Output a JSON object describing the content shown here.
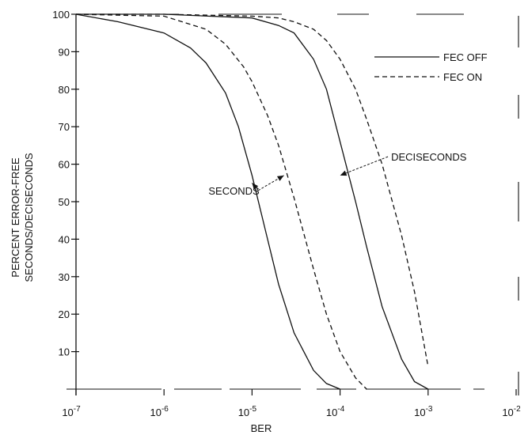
{
  "chart_data": {
    "type": "line",
    "title": "",
    "xlabel": "BER",
    "ylabel_lines": [
      "PERCENT ERROR-FREE",
      "SECONDS/DECISECONDS"
    ],
    "x_scale": "log",
    "xlim": [
      1e-07,
      0.01
    ],
    "ylim": [
      0,
      100
    ],
    "x_ticks": [
      {
        "value": 1e-07,
        "base": "10",
        "exp": "-7"
      },
      {
        "value": 1e-06,
        "base": "10",
        "exp": "-6"
      },
      {
        "value": 1e-05,
        "base": "10",
        "exp": "-5"
      },
      {
        "value": 0.0001,
        "base": "10",
        "exp": "-4"
      },
      {
        "value": 0.001,
        "base": "10",
        "exp": "-3"
      },
      {
        "value": 0.01,
        "base": "10",
        "exp": "-2"
      }
    ],
    "y_ticks": [
      {
        "value": 10,
        "label": "10"
      },
      {
        "value": 20,
        "label": "20"
      },
      {
        "value": 30,
        "label": "30"
      },
      {
        "value": 40,
        "label": "40"
      },
      {
        "value": 50,
        "label": "50"
      },
      {
        "value": 60,
        "label": "60"
      },
      {
        "value": 70,
        "label": "70"
      },
      {
        "value": 80,
        "label": "80"
      },
      {
        "value": 90,
        "label": "90"
      },
      {
        "value": 100,
        "label": "100"
      }
    ],
    "legend": {
      "placement": "top-right",
      "entries": [
        {
          "label": "FEC OFF",
          "style": "solid"
        },
        {
          "label": "FEC ON",
          "style": "dashed"
        }
      ]
    },
    "series": [
      {
        "key": "sec_off",
        "style": "solid",
        "group": "SECONDS",
        "x": [
          1e-07,
          3e-07,
          1e-06,
          2e-06,
          3e-06,
          5e-06,
          7e-06,
          1e-05,
          1.5e-05,
          2e-05,
          3e-05,
          5e-05,
          7e-05,
          0.0001
        ],
        "y": [
          100,
          98,
          95,
          91,
          87,
          79,
          70,
          57,
          40,
          28,
          15,
          5,
          1.5,
          0
        ]
      },
      {
        "key": "sec_on",
        "style": "dashed",
        "group": "SECONDS",
        "x": [
          1e-07,
          1e-06,
          3e-06,
          5e-06,
          8e-06,
          1e-05,
          1.5e-05,
          2e-05,
          3e-05,
          5e-05,
          7e-05,
          0.0001,
          0.00015,
          0.0002
        ],
        "y": [
          100,
          99.5,
          96,
          92,
          86,
          82,
          73,
          65,
          51,
          32,
          20,
          10,
          3,
          0
        ]
      },
      {
        "key": "dec_off",
        "style": "solid",
        "group": "DECISECONDS",
        "x": [
          1e-07,
          1e-06,
          1e-05,
          2e-05,
          3e-05,
          5e-05,
          7e-05,
          0.0001,
          0.00015,
          0.0002,
          0.0003,
          0.0005,
          0.0007,
          0.001
        ],
        "y": [
          100,
          100,
          99,
          97,
          95,
          88,
          80,
          66,
          50,
          38,
          22,
          8,
          2,
          0
        ]
      },
      {
        "key": "dec_on",
        "style": "dashed",
        "group": "DECISECONDS",
        "x": [
          1e-07,
          1e-06,
          1e-05,
          2e-05,
          3e-05,
          5e-05,
          7e-05,
          0.0001,
          0.00015,
          0.0002,
          0.0003,
          0.0005,
          0.0007,
          0.001
        ],
        "y": [
          100,
          100,
          99.5,
          99,
          98,
          96,
          93,
          88,
          80,
          72,
          60,
          41,
          26,
          6
        ]
      }
    ],
    "annotations": [
      {
        "text": "SECONDS",
        "x": 3.2e-06,
        "y": 53,
        "arrows_to": [
          {
            "x": 1e-05,
            "y": 55
          },
          {
            "x": 2.3e-05,
            "y": 57
          }
        ]
      },
      {
        "text": "DECISECONDS",
        "x": 0.00038,
        "y": 62,
        "arrows_to": [
          {
            "x": 0.0001,
            "y": 57
          }
        ]
      }
    ],
    "grid": false
  }
}
